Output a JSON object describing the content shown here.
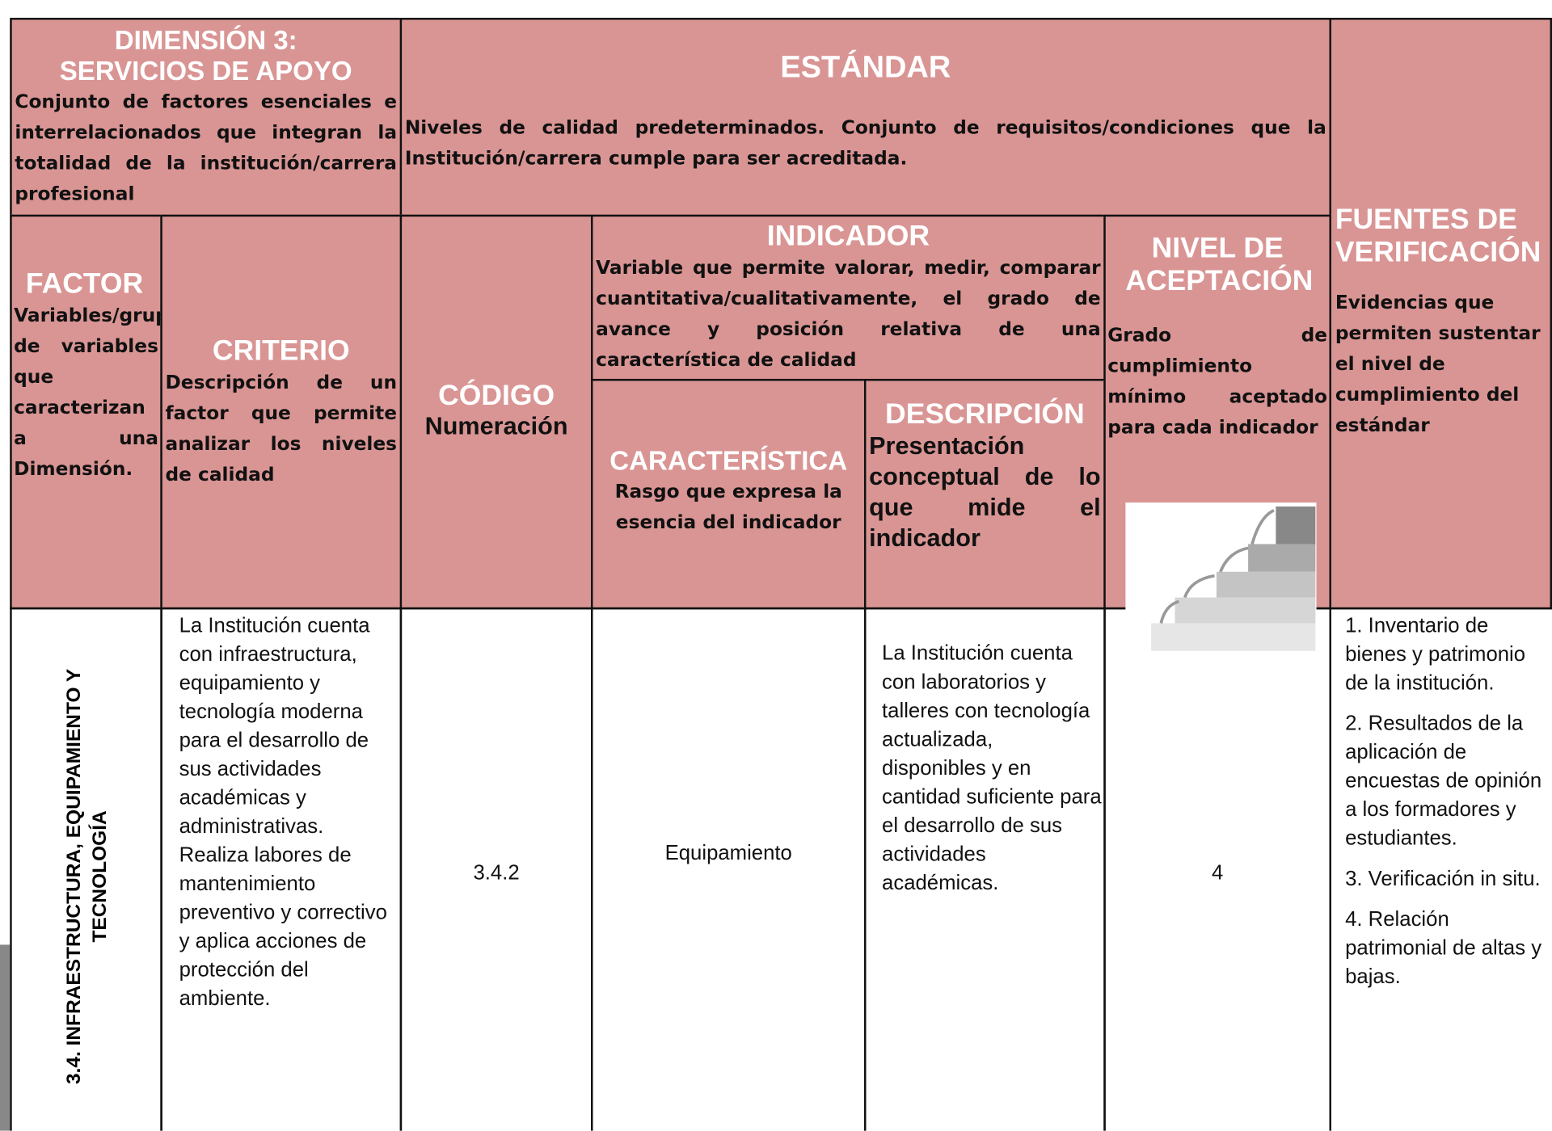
{
  "header": {
    "dimension": {
      "title_1": "DIMENSIÓN 3:",
      "title_2": "SERVICIOS DE APOYO",
      "description": "Conjunto de factores esenciales e interrelacionados que integran la totalidad de la institución/carrera profesional"
    },
    "standard": {
      "title": "ESTÁNDAR",
      "description": "Niveles de calidad predeterminados. Conjunto de requisitos/condiciones que la Institución/carrera cumple para ser acreditada."
    },
    "sources": {
      "title": "FUENTES DE VERIFICACIÓN",
      "description": "Evidencias que permiten sustentar el nivel de cumplimiento del estándar"
    },
    "factor": {
      "title": "FACTOR",
      "description": "Variables/grupo de variables que caracterizan a una Dimensión."
    },
    "criterion": {
      "title": "CRITERIO",
      "description": "Descripción de un factor que permite analizar los niveles de calidad"
    },
    "code": {
      "title": "CÓDIGO",
      "description": "Numeración"
    },
    "indicator": {
      "title": "INDICADOR",
      "description": "Variable que permite valorar, medir, comparar cuantitativa/cualitativamente, el grado de avance y posición relativa de una característica de calidad"
    },
    "characteristic": {
      "title": "CARACTERÍSTICA",
      "description": "Rasgo que expresa la esencia del indicador"
    },
    "description": {
      "title": "DESCRIPCIÓN",
      "description": "Presentación conceptual de lo que mide el indicador"
    },
    "acceptance": {
      "title": "NIVEL DE ACEPTACIÓN",
      "description": "Grado de cumplimiento mínimo aceptado para cada indicador"
    }
  },
  "row": {
    "factor": "3.4. INFRAESTRUCTURA, EQUIPAMIENTO Y TECNOLOGÍA",
    "criterion": "La Institución cuenta con infraestructura, equipamiento y tecnología moderna para el desarrollo de sus actividades académicas y administrativas. Realiza labores de mantenimiento preventivo y correctivo y aplica acciones de protección del ambiente.",
    "code": "3.4.2",
    "characteristic": "Equipamiento",
    "description": "La Institución cuenta con laboratorios y talleres con tecnología actualizada, disponibles y en cantidad suficiente para el desarrollo de sus actividades académicas.",
    "acceptance_level": "4",
    "sources": [
      "1. Inventario de bienes y patrimonio de la institución.",
      "2. Resultados de la aplicación de encuestas de opinión a los formadores y estudiantes.",
      "3. Verificación in situ.",
      "4. Relación patrimonial de altas y bajas."
    ]
  }
}
